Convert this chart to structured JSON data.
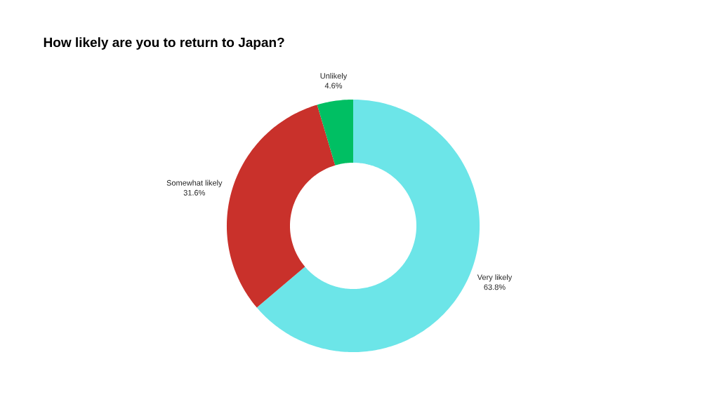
{
  "chart_data": {
    "type": "donut",
    "title": "How likely are you to return to Japan?",
    "categories": [
      "Very likely",
      "Somewhat likely",
      "Unlikely"
    ],
    "values": [
      63.8,
      31.6,
      4.6
    ],
    "value_labels": [
      "63.8%",
      "31.6%",
      "4.6%"
    ],
    "colors": [
      "#6ce5e8",
      "#c9312b",
      "#00bf63"
    ]
  }
}
